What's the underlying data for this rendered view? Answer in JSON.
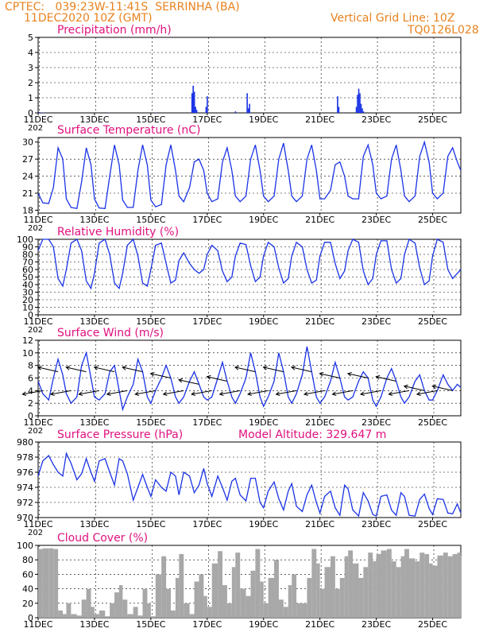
{
  "header": {
    "org": "CPTEC:",
    "coords": "039:23W-11:41S",
    "station": "SERRINHA (BA)",
    "run_time": "11DEC2020 10Z (GMT)",
    "grid_note": "Vertical Grid Line: 10Z",
    "code": "TQ0126L028"
  },
  "date_labels": [
    "11DEC",
    "13DEC",
    "15DEC",
    "17DEC",
    "19DEC",
    "21DEC",
    "23DEC",
    "25DEC"
  ],
  "year_fragment": "202",
  "colors": {
    "header": "#e8821e",
    "title": "#e0117f",
    "line": "#1a33e6",
    "cloud": "#a8a8a8",
    "arrow": "#000000"
  },
  "chart_data": [
    {
      "type": "bar",
      "title": "Precipitation (mm/h)",
      "ylim": [
        0,
        5
      ],
      "yticks": [
        "0",
        "1",
        "2",
        "3",
        "4",
        "5"
      ],
      "x_range": [
        0,
        360
      ],
      "x_unit": "hours from 11DEC2020 10Z",
      "bars": [
        {
          "t": 1,
          "v": 0.05
        },
        {
          "t": 3,
          "v": 0.03
        },
        {
          "t": 5,
          "v": 0.02
        },
        {
          "t": 60,
          "v": 0.02
        },
        {
          "t": 100,
          "v": 0.02
        },
        {
          "t": 131,
          "v": 1.3
        },
        {
          "t": 132,
          "v": 1.8
        },
        {
          "t": 133,
          "v": 1.4
        },
        {
          "t": 134,
          "v": 0.4
        },
        {
          "t": 135,
          "v": 0.2
        },
        {
          "t": 143,
          "v": 0.4
        },
        {
          "t": 144,
          "v": 1.1
        },
        {
          "t": 168,
          "v": 0.1
        },
        {
          "t": 178,
          "v": 1.3
        },
        {
          "t": 179,
          "v": 0.3
        },
        {
          "t": 180,
          "v": 0.6
        },
        {
          "t": 255,
          "v": 1.1
        },
        {
          "t": 256,
          "v": 0.4
        },
        {
          "t": 271,
          "v": 0.4
        },
        {
          "t": 272,
          "v": 1.2
        },
        {
          "t": 273,
          "v": 1.6
        },
        {
          "t": 274,
          "v": 1.3
        },
        {
          "t": 275,
          "v": 0.6
        },
        {
          "t": 276,
          "v": 0.3
        },
        {
          "t": 277,
          "v": 0.1
        }
      ]
    },
    {
      "type": "line",
      "title": "Surface Temperature (nC)",
      "ylim": [
        17.5,
        30.8
      ],
      "yticks": [
        "18",
        "21",
        "24",
        "27",
        "30"
      ],
      "ytick_values": [
        18,
        21,
        24,
        27,
        30
      ],
      "x_range": [
        0,
        360
      ],
      "x": [
        0,
        4,
        9,
        13,
        17,
        21,
        24,
        28,
        33,
        37,
        41,
        45,
        48,
        52,
        57,
        61,
        65,
        69,
        72,
        76,
        81,
        85,
        89,
        93,
        96,
        100,
        105,
        109,
        113,
        117,
        120,
        124,
        129,
        133,
        137,
        141,
        144,
        148,
        153,
        157,
        161,
        165,
        168,
        172,
        177,
        181,
        185,
        189,
        192,
        196,
        201,
        205,
        209,
        213,
        216,
        220,
        225,
        229,
        233,
        237,
        240,
        244,
        249,
        253,
        257,
        261,
        264,
        268,
        273,
        277,
        281,
        285,
        288,
        292,
        297,
        301,
        305,
        309,
        312,
        316,
        321,
        325,
        329,
        333,
        336,
        340,
        345,
        349,
        353,
        357,
        360
      ],
      "y": [
        21,
        19.3,
        19.2,
        22,
        29,
        27,
        20,
        18.5,
        18.3,
        23,
        29,
        26,
        20,
        18.4,
        18.3,
        24,
        29.5,
        26,
        19.8,
        18.5,
        18.5,
        25,
        29.5,
        26,
        19.8,
        18.6,
        19,
        26,
        29.5,
        25,
        20.5,
        19.5,
        22,
        26.5,
        27,
        25,
        21,
        19.5,
        20,
        26.5,
        29,
        25,
        20.5,
        19.5,
        20.5,
        27,
        29.5,
        25,
        20.5,
        19.5,
        20.5,
        27,
        29.8,
        25,
        20.5,
        19.5,
        20.5,
        27,
        29.5,
        25,
        20,
        20,
        21.5,
        26,
        26.5,
        24,
        20.5,
        20,
        20,
        27.5,
        29.5,
        26,
        21,
        20,
        20.5,
        27,
        29.5,
        25,
        20.5,
        19.5,
        20.5,
        27.5,
        30,
        26.5,
        21,
        20,
        21,
        27.5,
        29,
        26.5,
        25
      ]
    },
    {
      "type": "line",
      "title": "Relative Humidity (%)",
      "ylim": [
        0,
        100
      ],
      "yticks": [
        "0",
        "10",
        "20",
        "30",
        "40",
        "50",
        "60",
        "70",
        "80",
        "90",
        "100"
      ],
      "x_range": [
        0,
        360
      ],
      "x": [
        0,
        4,
        9,
        13,
        17,
        21,
        24,
        28,
        33,
        37,
        41,
        45,
        48,
        52,
        57,
        61,
        65,
        69,
        72,
        76,
        81,
        85,
        89,
        93,
        96,
        100,
        105,
        109,
        113,
        117,
        120,
        124,
        129,
        133,
        137,
        141,
        144,
        148,
        153,
        157,
        161,
        165,
        168,
        172,
        177,
        181,
        185,
        189,
        192,
        196,
        201,
        205,
        209,
        213,
        216,
        220,
        225,
        229,
        233,
        237,
        240,
        244,
        249,
        253,
        257,
        261,
        264,
        268,
        273,
        277,
        281,
        285,
        288,
        292,
        297,
        301,
        305,
        309,
        312,
        316,
        321,
        325,
        329,
        333,
        336,
        340,
        345,
        349,
        353,
        357,
        360
      ],
      "y": [
        85,
        100,
        100,
        90,
        48,
        38,
        60,
        95,
        100,
        85,
        45,
        35,
        55,
        95,
        100,
        80,
        42,
        35,
        55,
        92,
        100,
        78,
        42,
        38,
        60,
        92,
        95,
        68,
        42,
        46,
        72,
        82,
        68,
        60,
        55,
        60,
        80,
        92,
        85,
        58,
        44,
        50,
        78,
        95,
        93,
        65,
        44,
        50,
        78,
        96,
        90,
        62,
        42,
        48,
        78,
        96,
        90,
        60,
        42,
        46,
        78,
        96,
        96,
        68,
        48,
        58,
        85,
        100,
        96,
        58,
        40,
        48,
        80,
        98,
        98,
        60,
        42,
        48,
        80,
        100,
        95,
        62,
        40,
        45,
        78,
        100,
        96,
        60,
        48,
        55,
        60
      ]
    },
    {
      "type": "line",
      "title": "Surface Wind (m/s)",
      "ylim": [
        0,
        12
      ],
      "yticks": [
        "0",
        "2",
        "4",
        "6",
        "8",
        "10",
        "12"
      ],
      "x_range": [
        0,
        360
      ],
      "x": [
        0,
        4,
        9,
        13,
        17,
        21,
        24,
        28,
        33,
        37,
        41,
        45,
        48,
        52,
        57,
        61,
        65,
        69,
        72,
        76,
        81,
        85,
        89,
        93,
        96,
        100,
        105,
        109,
        113,
        117,
        120,
        124,
        129,
        133,
        137,
        141,
        144,
        148,
        153,
        157,
        161,
        165,
        168,
        172,
        177,
        181,
        185,
        189,
        192,
        196,
        201,
        205,
        209,
        213,
        216,
        220,
        225,
        229,
        233,
        237,
        240,
        244,
        249,
        253,
        257,
        261,
        264,
        268,
        273,
        277,
        281,
        285,
        288,
        292,
        297,
        301,
        305,
        309,
        312,
        316,
        321,
        325,
        329,
        333,
        336,
        340,
        345,
        349,
        353,
        357,
        360
      ],
      "y": [
        5.5,
        3.5,
        2.5,
        6,
        9,
        6.5,
        3.5,
        2,
        3,
        8,
        10,
        6,
        3,
        2.5,
        3.5,
        7,
        8,
        4,
        1,
        3,
        5,
        9,
        7,
        3,
        2,
        4,
        6,
        8,
        6,
        3,
        2,
        3,
        5.5,
        7,
        5,
        3,
        2.5,
        3,
        6,
        8.5,
        5.5,
        3,
        2,
        3.5,
        6,
        10,
        7,
        3,
        1.5,
        3,
        5.5,
        10,
        7,
        3,
        2,
        3.5,
        6.5,
        11,
        7,
        3,
        2,
        3,
        5.5,
        8.5,
        6,
        3,
        2.5,
        3,
        5.5,
        7,
        6,
        2.5,
        1.5,
        3,
        6,
        7.5,
        5.5,
        3,
        2,
        3,
        5.5,
        6.5,
        4,
        2.5,
        2.5,
        4,
        6.5,
        5,
        4,
        5,
        4.5
      ]
    },
    {
      "type": "line",
      "title": "Surface Pressure (hPa)",
      "annotation": "Model Altitude: 329.647 m",
      "ylim": [
        970,
        980
      ],
      "yticks": [
        "970",
        "972",
        "974",
        "976",
        "978",
        "980"
      ],
      "ytick_values": [
        970,
        972,
        974,
        976,
        978,
        980
      ],
      "x_range": [
        0,
        360
      ],
      "x": [
        0,
        4,
        9,
        13,
        17,
        21,
        24,
        28,
        33,
        37,
        41,
        45,
        48,
        52,
        57,
        61,
        65,
        69,
        72,
        76,
        81,
        85,
        89,
        93,
        96,
        100,
        105,
        109,
        113,
        117,
        120,
        124,
        129,
        133,
        137,
        141,
        144,
        148,
        153,
        157,
        161,
        165,
        168,
        172,
        177,
        181,
        185,
        189,
        192,
        196,
        201,
        205,
        209,
        213,
        216,
        220,
        225,
        229,
        233,
        237,
        240,
        244,
        249,
        253,
        257,
        261,
        264,
        268,
        273,
        277,
        281,
        285,
        288,
        292,
        297,
        301,
        305,
        309,
        312,
        316,
        321,
        325,
        329,
        333,
        336,
        340,
        345,
        349,
        353,
        357,
        360
      ],
      "y": [
        975.5,
        977.5,
        978.2,
        977,
        976,
        975.5,
        978.5,
        977.2,
        975,
        975.8,
        977.8,
        976,
        974.8,
        977.5,
        977.8,
        976,
        974.3,
        977.8,
        977.5,
        975.8,
        972.3,
        974,
        975.7,
        974,
        972.8,
        975,
        974,
        973.5,
        976,
        975.5,
        973,
        976,
        975.5,
        973.3,
        974.3,
        976.5,
        974.5,
        972.8,
        975.5,
        974,
        972.3,
        974.8,
        975.2,
        973,
        972.2,
        975.2,
        975.2,
        972,
        971.3,
        973.5,
        974.7,
        972.5,
        971,
        973.5,
        974.5,
        971.5,
        970.8,
        973,
        974.3,
        972,
        970.6,
        972.8,
        973.5,
        971.3,
        970.3,
        974.3,
        973.8,
        971,
        970.2,
        973.3,
        972.2,
        970.4,
        970.2,
        972.8,
        973,
        971,
        970.3,
        973.3,
        972.8,
        970.3,
        970.2,
        972.4,
        973.1,
        971.2,
        970.4,
        972.5,
        972.4,
        970.6,
        970.5,
        971.8,
        970.6
      ]
    },
    {
      "type": "bar",
      "title": "Cloud Cover (%)",
      "ylim": [
        0,
        100
      ],
      "yticks": [
        "0",
        "20",
        "40",
        "60",
        "80",
        "100"
      ],
      "x_range": [
        0,
        360
      ],
      "x": [
        0,
        4,
        9,
        13,
        17,
        21,
        24,
        28,
        33,
        37,
        41,
        45,
        48,
        52,
        57,
        61,
        65,
        69,
        72,
        76,
        81,
        85,
        89,
        93,
        96,
        100,
        105,
        109,
        113,
        117,
        120,
        124,
        129,
        133,
        137,
        141,
        144,
        148,
        153,
        157,
        161,
        165,
        168,
        172,
        177,
        181,
        185,
        189,
        192,
        196,
        201,
        205,
        209,
        213,
        216,
        220,
        225,
        229,
        233,
        237,
        240,
        244,
        249,
        253,
        257,
        261,
        264,
        268,
        273,
        277,
        281,
        285,
        288,
        292,
        297,
        301,
        305,
        309,
        312,
        316,
        321,
        325,
        329,
        333,
        336,
        340,
        345,
        349,
        353,
        357,
        360
      ],
      "values": [
        95,
        96,
        96,
        95,
        10,
        5,
        20,
        5,
        3,
        25,
        40,
        15,
        5,
        10,
        2,
        20,
        35,
        45,
        25,
        5,
        15,
        3,
        40,
        20,
        2,
        60,
        85,
        40,
        10,
        55,
        88,
        20,
        5,
        50,
        60,
        30,
        15,
        75,
        92,
        45,
        20,
        70,
        90,
        40,
        30,
        65,
        95,
        50,
        20,
        55,
        80,
        25,
        15,
        45,
        60,
        20,
        20,
        55,
        95,
        75,
        40,
        70,
        85,
        40,
        55,
        85,
        93,
        75,
        55,
        70,
        90,
        78,
        88,
        93,
        95,
        78,
        70,
        85,
        95,
        82,
        78,
        90,
        88,
        75,
        72,
        86,
        90,
        85,
        88,
        90,
        86
      ]
    }
  ]
}
